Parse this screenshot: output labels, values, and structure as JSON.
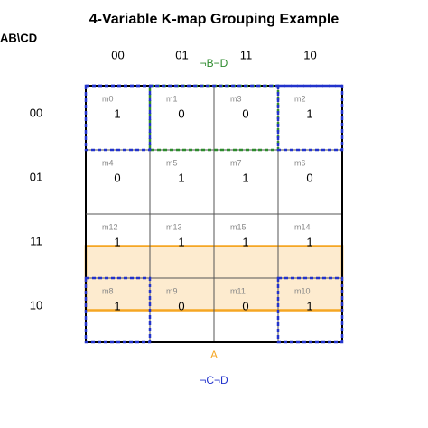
{
  "title": "4-Variable K-map Grouping Example",
  "corner_label": "AB\\CD",
  "column_headers": [
    "00",
    "01",
    "11",
    "10"
  ],
  "row_labels": [
    "00",
    "01",
    "11",
    "10"
  ],
  "cells": [
    [
      {
        "minterm": "m0",
        "value": "1"
      },
      {
        "minterm": "m1",
        "value": "0"
      },
      {
        "minterm": "m3",
        "value": "0"
      },
      {
        "minterm": "m2",
        "value": "1"
      }
    ],
    [
      {
        "minterm": "m4",
        "value": "0"
      },
      {
        "minterm": "m5",
        "value": "1"
      },
      {
        "minterm": "m7",
        "value": "1"
      },
      {
        "minterm": "m6",
        "value": "0"
      }
    ],
    [
      {
        "minterm": "m12",
        "value": "1"
      },
      {
        "minterm": "m13",
        "value": "1"
      },
      {
        "minterm": "m15",
        "value": "1"
      },
      {
        "minterm": "m14",
        "value": "1"
      }
    ],
    [
      {
        "minterm": "m8",
        "value": "1"
      },
      {
        "minterm": "m9",
        "value": "0"
      },
      {
        "minterm": "m11",
        "value": "0"
      },
      {
        "minterm": "m10",
        "value": "1"
      }
    ]
  ],
  "groups": [
    {
      "label": "A",
      "color": "#f5a623"
    },
    {
      "label": "¬B¬D",
      "color": "#2e8b2e"
    },
    {
      "label": "¬C¬D",
      "color": "#2233cc"
    }
  ]
}
